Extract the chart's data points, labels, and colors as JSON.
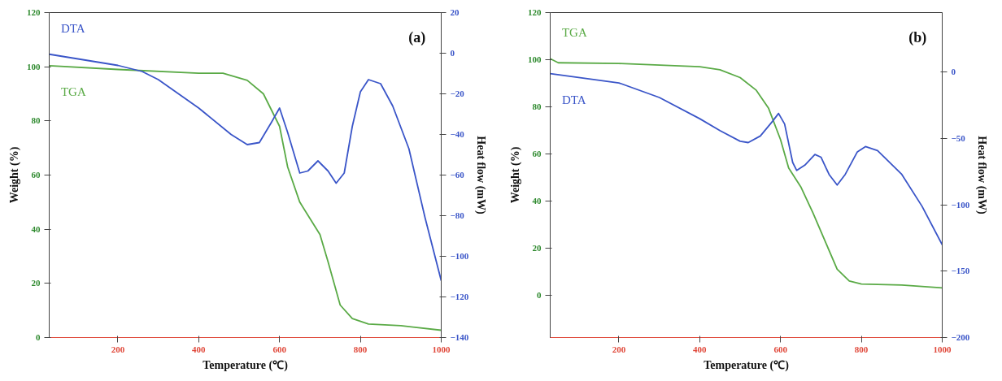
{
  "chart_data": [
    {
      "type": "line",
      "xlabel": "Temperature (℃)",
      "ylabel": "Weight (%)",
      "y2label": "Heat flow (mW)",
      "annotations": [
        "(a)"
      ],
      "xlim": [
        30,
        1000
      ],
      "xticks": [
        200,
        400,
        600,
        800,
        1000
      ],
      "ylim": [
        0,
        120
      ],
      "yticks": [
        0,
        20,
        40,
        60,
        80,
        100,
        120
      ],
      "y2lim": [
        -140,
        20
      ],
      "y2ticks": [
        -140,
        -120,
        -100,
        -80,
        -60,
        -40,
        -20,
        0,
        20
      ],
      "grid": false,
      "legend": false,
      "series": [
        {
          "name": "TGA",
          "color": "#5aaa46",
          "x": [
            30,
            200,
            400,
            460,
            520,
            560,
            600,
            620,
            650,
            700,
            720,
            750,
            780,
            820,
            900,
            1000
          ],
          "values": [
            100.4,
            99,
            97.6,
            97.6,
            95,
            90,
            78,
            63,
            50,
            38,
            28,
            12,
            7,
            5,
            4.4,
            2.7
          ]
        },
        {
          "name": "DTA",
          "color": "#3a55c8",
          "axis": "y2",
          "x": [
            30,
            200,
            260,
            300,
            400,
            480,
            520,
            550,
            580,
            600,
            620,
            650,
            670,
            695,
            720,
            740,
            760,
            780,
            800,
            820,
            850,
            880,
            920,
            960,
            1000
          ],
          "values": [
            -0.5,
            -6,
            -9,
            -13,
            -27,
            -40,
            -45,
            -44,
            -34,
            -27,
            -39,
            -59,
            -58,
            -53,
            -58,
            -64,
            -59,
            -36,
            -19,
            -13,
            -15,
            -26,
            -47,
            -81,
            -112
          ]
        }
      ]
    },
    {
      "type": "line",
      "xlabel": "Temperature (℃)",
      "ylabel": "Weight (%)",
      "y2label": "Heat flow (mW)",
      "annotations": [
        "(b)"
      ],
      "xlim": [
        30,
        1000
      ],
      "xticks": [
        200,
        400,
        600,
        800,
        1000
      ],
      "ylim": [
        -18,
        120
      ],
      "yticks": [
        0,
        20,
        40,
        60,
        80,
        100,
        120
      ],
      "y2lim": [
        -200,
        45
      ],
      "y2ticks": [
        -200,
        -150,
        -100,
        -50,
        0
      ],
      "grid": false,
      "legend": false,
      "series": [
        {
          "name": "TGA",
          "color": "#5aaa46",
          "x": [
            30,
            50,
            200,
            400,
            450,
            500,
            540,
            570,
            600,
            620,
            650,
            680,
            710,
            740,
            770,
            800,
            900,
            1000
          ],
          "values": [
            100.4,
            98.7,
            98.4,
            97,
            95.7,
            92.4,
            87,
            79.5,
            66,
            54,
            46,
            35,
            23,
            11,
            6,
            4.7,
            4.3,
            3.1
          ]
        },
        {
          "name": "DTA",
          "color": "#3a55c8",
          "axis": "y2",
          "x": [
            30,
            200,
            300,
            400,
            450,
            500,
            520,
            550,
            580,
            595,
            610,
            630,
            640,
            660,
            685,
            700,
            720,
            740,
            760,
            790,
            810,
            840,
            900,
            950,
            1000
          ],
          "values": [
            -1,
            -8,
            -19,
            -35,
            -44,
            -52,
            -53,
            -48,
            -37,
            -31,
            -39,
            -68,
            -74,
            -70,
            -62,
            -64,
            -77,
            -85,
            -77,
            -60,
            -56,
            -59,
            -77,
            -101,
            -130
          ]
        }
      ]
    }
  ]
}
